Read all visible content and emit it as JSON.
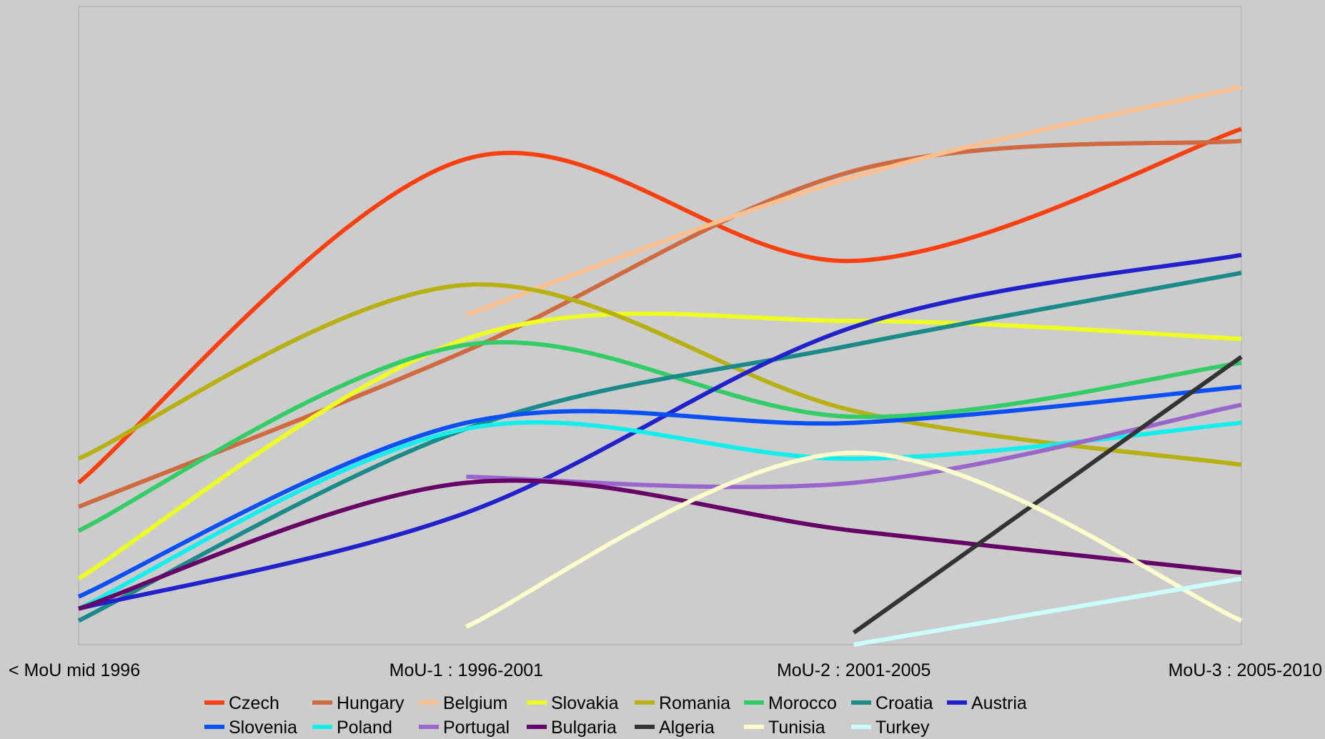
{
  "chart_data": {
    "type": "line",
    "title": "",
    "xlabel": "",
    "ylabel": "",
    "categories": [
      "< MoU mid 1996",
      "MoU-1 : 1996-2001",
      "MoU-2 : 2001-2005",
      "MoU-3 : 2005-2010"
    ],
    "ylim": [
      0,
      100
    ],
    "grid": false,
    "smooth": true,
    "legend_position": "bottom",
    "series": [
      {
        "name": "Czech",
        "color": "#ff4010",
        "values": [
          27,
          81,
          64,
          86
        ]
      },
      {
        "name": "Hungary",
        "color": "#d06a40",
        "values": [
          23,
          49,
          79,
          84
        ]
      },
      {
        "name": "Belgium",
        "color": "#ffc090",
        "values": [
          null,
          55,
          78,
          93
        ]
      },
      {
        "name": "Slovakia",
        "color": "#eeff22",
        "values": [
          11,
          51,
          54,
          51
        ]
      },
      {
        "name": "Romania",
        "color": "#b8b010",
        "values": [
          31,
          60,
          39,
          30
        ]
      },
      {
        "name": "Morocco",
        "color": "#33cc66",
        "values": [
          19,
          50,
          38,
          47
        ]
      },
      {
        "name": "Croatia",
        "color": "#1a8a8a",
        "values": [
          4,
          36,
          50,
          62
        ]
      },
      {
        "name": "Austria",
        "color": "#2222cc",
        "values": [
          6,
          22,
          53,
          65
        ]
      },
      {
        "name": "Slovenia",
        "color": "#0a50ff",
        "values": [
          8,
          37,
          37,
          43
        ]
      },
      {
        "name": "Poland",
        "color": "#11eeee",
        "values": [
          6,
          36,
          31,
          37
        ]
      },
      {
        "name": "Portugal",
        "color": "#9966cc",
        "values": [
          null,
          28,
          27,
          40
        ]
      },
      {
        "name": "Bulgaria",
        "color": "#660066",
        "values": [
          6,
          27,
          19,
          12
        ]
      },
      {
        "name": "Algeria",
        "color": "#333333",
        "values": [
          null,
          null,
          2,
          48
        ]
      },
      {
        "name": "Tunisia",
        "color": "#ffffcc",
        "values": [
          null,
          3,
          32,
          4
        ]
      },
      {
        "name": "Turkey",
        "color": "#ccffff",
        "values": [
          null,
          null,
          0,
          11
        ]
      }
    ]
  }
}
